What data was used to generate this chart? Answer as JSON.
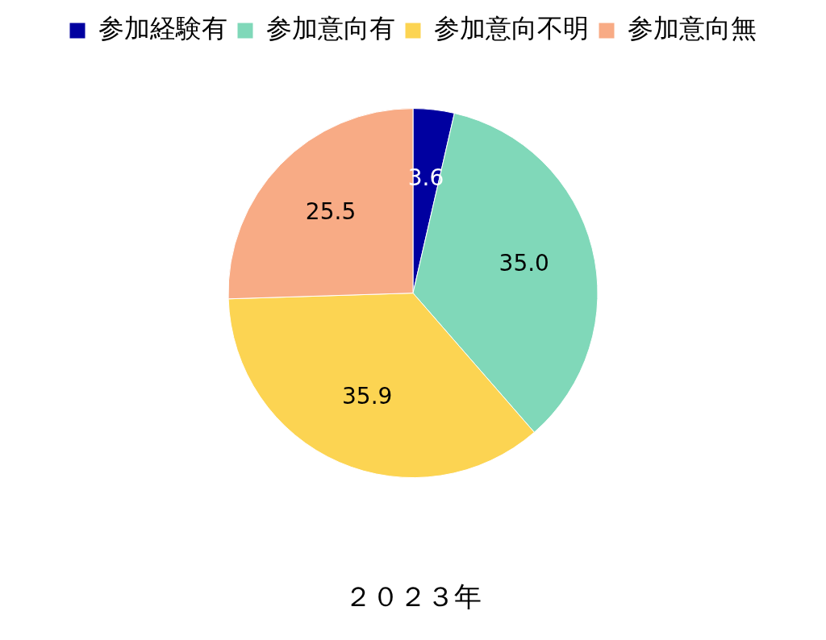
{
  "chart_data": {
    "type": "pie",
    "title": "２０２３年",
    "categories": [
      "参加経験有",
      "参加意向有",
      "参加意向不明",
      "参加意向無"
    ],
    "values": [
      3.6,
      35.0,
      35.9,
      25.5
    ],
    "colors": [
      "#0000a0",
      "#80d8b9",
      "#fcd452",
      "#f8ab85"
    ],
    "value_labels": [
      "3.6",
      "35.0",
      "35.9",
      "25.5"
    ],
    "legend": "top"
  }
}
